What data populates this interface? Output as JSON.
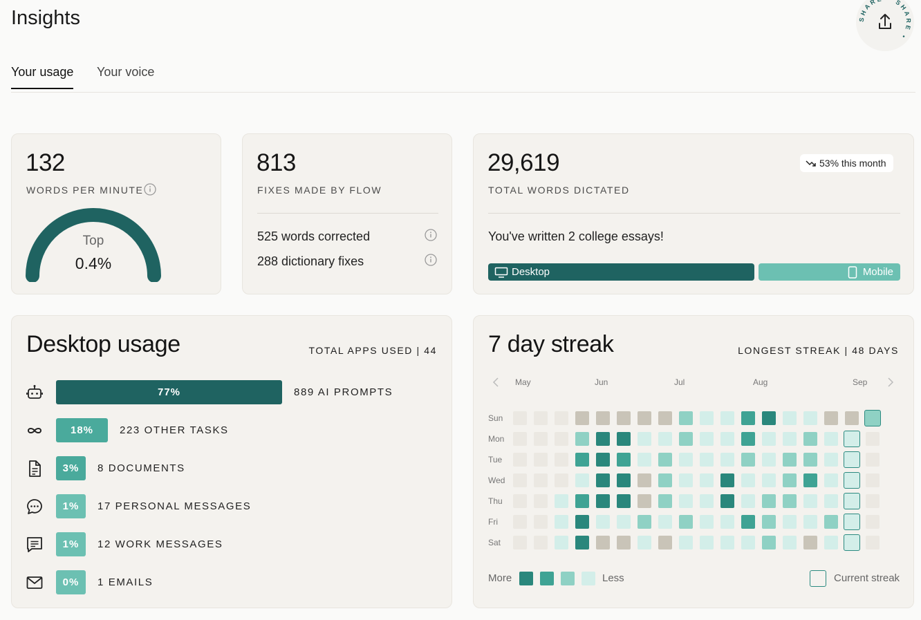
{
  "header": {
    "title": "Insights",
    "share_text": "SHARE • SHARE •"
  },
  "tabs": [
    {
      "label": "Your usage",
      "active": true
    },
    {
      "label": "Your voice",
      "active": false
    }
  ],
  "wpm_card": {
    "value": "132",
    "label": "WORDS PER MINUTE",
    "gauge_top": "Top",
    "gauge_pct": "0.4%",
    "gauge_fraction": 0.996
  },
  "fixes_card": {
    "value": "813",
    "label": "FIXES MADE BY FLOW",
    "rows": [
      {
        "text": "525 words corrected"
      },
      {
        "text": "288 dictionary fixes"
      }
    ]
  },
  "words_card": {
    "value": "29,619",
    "label": "TOTAL WORDS DICTATED",
    "trend": "53% this month",
    "message": "You've written 2 college essays!",
    "desktop_label": "Desktop",
    "mobile_label": "Mobile"
  },
  "desktop_usage": {
    "title": "Desktop usage",
    "total_label": "TOTAL APPS USED | 44",
    "rows": [
      {
        "icon": "robot-icon",
        "pct": "77%",
        "label": "889 AI PROMPTS"
      },
      {
        "icon": "infinity-icon",
        "pct": "18%",
        "label": "223 OTHER TASKS"
      },
      {
        "icon": "document-icon",
        "pct": "3%",
        "label": "8 DOCUMENTS"
      },
      {
        "icon": "chat-bubble-icon",
        "pct": "1%",
        "label": "17 PERSONAL MESSAGES"
      },
      {
        "icon": "message-icon",
        "pct": "1%",
        "label": "12 WORK MESSAGES"
      },
      {
        "icon": "mail-icon",
        "pct": "0%",
        "label": "1 EMAILS"
      }
    ]
  },
  "streak": {
    "title": "7 day streak",
    "longest_label": "LONGEST STREAK | 48 DAYS",
    "months": [
      "May",
      "Jun",
      "Jul",
      "Aug",
      "Sep"
    ],
    "days": [
      "Sun",
      "Mon",
      "Tue",
      "Wed",
      "Thu",
      "Fri",
      "Sat"
    ],
    "legend_more": "More",
    "legend_less": "Less",
    "legend_current": "Current streak",
    "grid": [
      [
        0,
        0,
        0,
        5,
        5,
        5,
        5,
        5,
        2,
        1,
        1,
        3,
        4,
        1,
        1,
        5,
        5,
        2
      ],
      [
        0,
        0,
        0,
        2,
        4,
        4,
        1,
        1,
        2,
        1,
        1,
        3,
        1,
        1,
        2,
        1,
        0,
        0
      ],
      [
        0,
        0,
        0,
        3,
        4,
        3,
        1,
        2,
        1,
        1,
        1,
        2,
        1,
        2,
        2,
        1,
        0,
        0
      ],
      [
        0,
        0,
        0,
        1,
        4,
        4,
        5,
        2,
        1,
        1,
        4,
        1,
        1,
        2,
        3,
        1,
        0,
        0
      ],
      [
        0,
        0,
        1,
        3,
        4,
        4,
        5,
        2,
        1,
        1,
        4,
        1,
        2,
        2,
        1,
        1,
        0,
        0
      ],
      [
        0,
        0,
        1,
        4,
        1,
        1,
        2,
        1,
        2,
        1,
        1,
        3,
        2,
        1,
        1,
        2,
        1,
        0
      ],
      [
        0,
        0,
        1,
        4,
        5,
        5,
        1,
        5,
        1,
        1,
        1,
        1,
        2,
        1,
        5,
        1,
        1,
        0
      ]
    ],
    "current_streak": [
      [
        0,
        17
      ],
      [
        1,
        16
      ],
      [
        2,
        16
      ],
      [
        3,
        16
      ],
      [
        4,
        16
      ],
      [
        5,
        16
      ],
      [
        6,
        16
      ]
    ]
  },
  "colors": {
    "dark": "#1f6361",
    "teal_dark": "#2a877c",
    "teal_mid": "#3fa394",
    "teal_light": "#8fd1c4",
    "teal_pale": "#d3eee9",
    "empty": "#ebe8e2",
    "tan": "#c9c4b8",
    "bar_light": "#6cc0b2",
    "bar_mid": "#4aaa9c"
  }
}
